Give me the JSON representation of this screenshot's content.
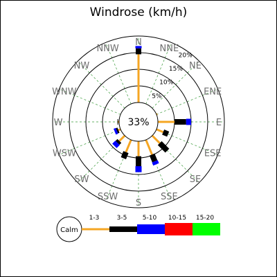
{
  "chart_data": {
    "type": "windrose",
    "title": "Windrose (km/h)",
    "calm_value": "33%",
    "calm_label": "Calm",
    "directions": [
      "N",
      "NNE",
      "NE",
      "ENE",
      "E",
      "ESE",
      "SE",
      "SSE",
      "S",
      "SSW",
      "SW",
      "WSW",
      "W",
      "WNW",
      "NW",
      "NNW"
    ],
    "ring_labels": [
      "5%",
      "10%",
      "15%",
      "20%"
    ],
    "ring_values": [
      5,
      10,
      15,
      20
    ],
    "speed_bins": [
      {
        "label": "1-3",
        "color": "#f5a623"
      },
      {
        "label": "3-5",
        "color": "#000000"
      },
      {
        "label": "5-10",
        "color": "#0000ff"
      },
      {
        "label": "10-15",
        "color": "#ff0000"
      },
      {
        "label": "15-20",
        "color": "#00ff00"
      }
    ],
    "series": [
      {
        "direction": "N",
        "values": [
          14.5,
          1.8,
          0.7,
          0,
          0
        ]
      },
      {
        "direction": "NNE",
        "values": [
          0,
          0,
          0,
          0,
          0
        ]
      },
      {
        "direction": "NE",
        "values": [
          0,
          0,
          0,
          0,
          0
        ]
      },
      {
        "direction": "ENE",
        "values": [
          0.3,
          0,
          0,
          0,
          0
        ]
      },
      {
        "direction": "E",
        "values": [
          5.0,
          3.5,
          1.5,
          0,
          0
        ]
      },
      {
        "direction": "ESE",
        "values": [
          2.2,
          1.6,
          0,
          0,
          0
        ]
      },
      {
        "direction": "SE",
        "values": [
          3.2,
          3.2,
          0,
          0,
          0
        ]
      },
      {
        "direction": "SSE",
        "values": [
          4.8,
          2.2,
          1.0,
          0,
          0
        ]
      },
      {
        "direction": "S",
        "values": [
          4.5,
          3.0,
          1.8,
          0,
          0
        ]
      },
      {
        "direction": "SSW",
        "values": [
          4.0,
          2.0,
          0,
          0,
          0
        ]
      },
      {
        "direction": "SW",
        "values": [
          2.3,
          0.8,
          1.3,
          0,
          0
        ]
      },
      {
        "direction": "WSW",
        "values": [
          0.7,
          0.5,
          0.7,
          0,
          0
        ]
      },
      {
        "direction": "W",
        "values": [
          0.3,
          0.2,
          0,
          0,
          0
        ]
      },
      {
        "direction": "WNW",
        "values": [
          0,
          0,
          0,
          0,
          0
        ]
      },
      {
        "direction": "NW",
        "values": [
          0,
          0,
          0,
          0,
          0
        ]
      },
      {
        "direction": "NNW",
        "values": [
          0,
          0,
          0,
          0,
          0
        ]
      }
    ]
  }
}
